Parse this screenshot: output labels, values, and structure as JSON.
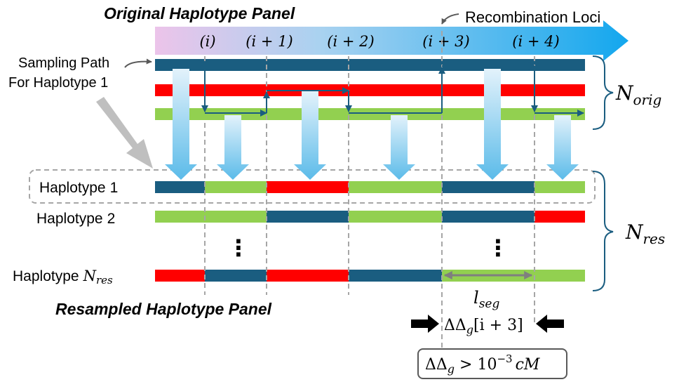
{
  "titles": {
    "original": "Original Haplotype Panel",
    "resampled": "Resampled Haplotype Panel"
  },
  "labels": {
    "recombination_loci": "Recombination Loci",
    "sampling_path_line1": "Sampling Path",
    "sampling_path_line2": "For Haplotype 1",
    "n_orig_base": "N",
    "n_orig_sub": "orig",
    "n_res_base": "N",
    "n_res_sub": "res",
    "seg_base": "l",
    "seg_sub": "seg",
    "delta_label": "ΔΔ",
    "delta_sub": "g",
    "delta_index": "[i + 3]",
    "threshold_lhs": "ΔΔ",
    "threshold_sub": "g",
    "threshold_rhs": " > 10",
    "threshold_exp": "−3",
    "threshold_unit": "cM",
    "vdots": "⋮"
  },
  "loci": [
    "(i)",
    "(i + 1)",
    "(i + 2)",
    "(i + 3)",
    "(i + 4)"
  ],
  "haplotypes": [
    {
      "prefix": "Haplotype",
      "index": "1"
    },
    {
      "prefix": "Haplotype",
      "index": "2"
    },
    {
      "prefix": "Haplotype",
      "index_base": "N",
      "index_sub": "res"
    }
  ],
  "colors": {
    "hap_a": "#1a5d80",
    "hap_b": "#ff0000",
    "hap_c": "#92d050",
    "arrow_light": "#e3f2fb",
    "arrow_dark": "#5bbbe9",
    "banner_start": "#ecc4ea",
    "banner_end": "#13a7ee",
    "dash": "#a6a6a6",
    "path_line": "#1a5d80"
  },
  "original_panel": [
    [
      "hap_a",
      "hap_a",
      "hap_a",
      "hap_a",
      "hap_a",
      "hap_a"
    ],
    [
      "hap_b",
      "hap_b",
      "hap_b",
      "hap_b",
      "hap_b",
      "hap_b"
    ],
    [
      "hap_c",
      "hap_c",
      "hap_c",
      "hap_c",
      "hap_c",
      "hap_c"
    ]
  ],
  "resampled_panel": [
    [
      "hap_a",
      "hap_c",
      "hap_b",
      "hap_c",
      "hap_a",
      "hap_c"
    ],
    [
      "hap_c",
      "hap_c",
      "hap_a",
      "hap_c",
      "hap_a",
      "hap_b"
    ],
    [
      "hap_b",
      "hap_a",
      "hap_b",
      "hap_a",
      "hap_c",
      "hap_c"
    ]
  ]
}
